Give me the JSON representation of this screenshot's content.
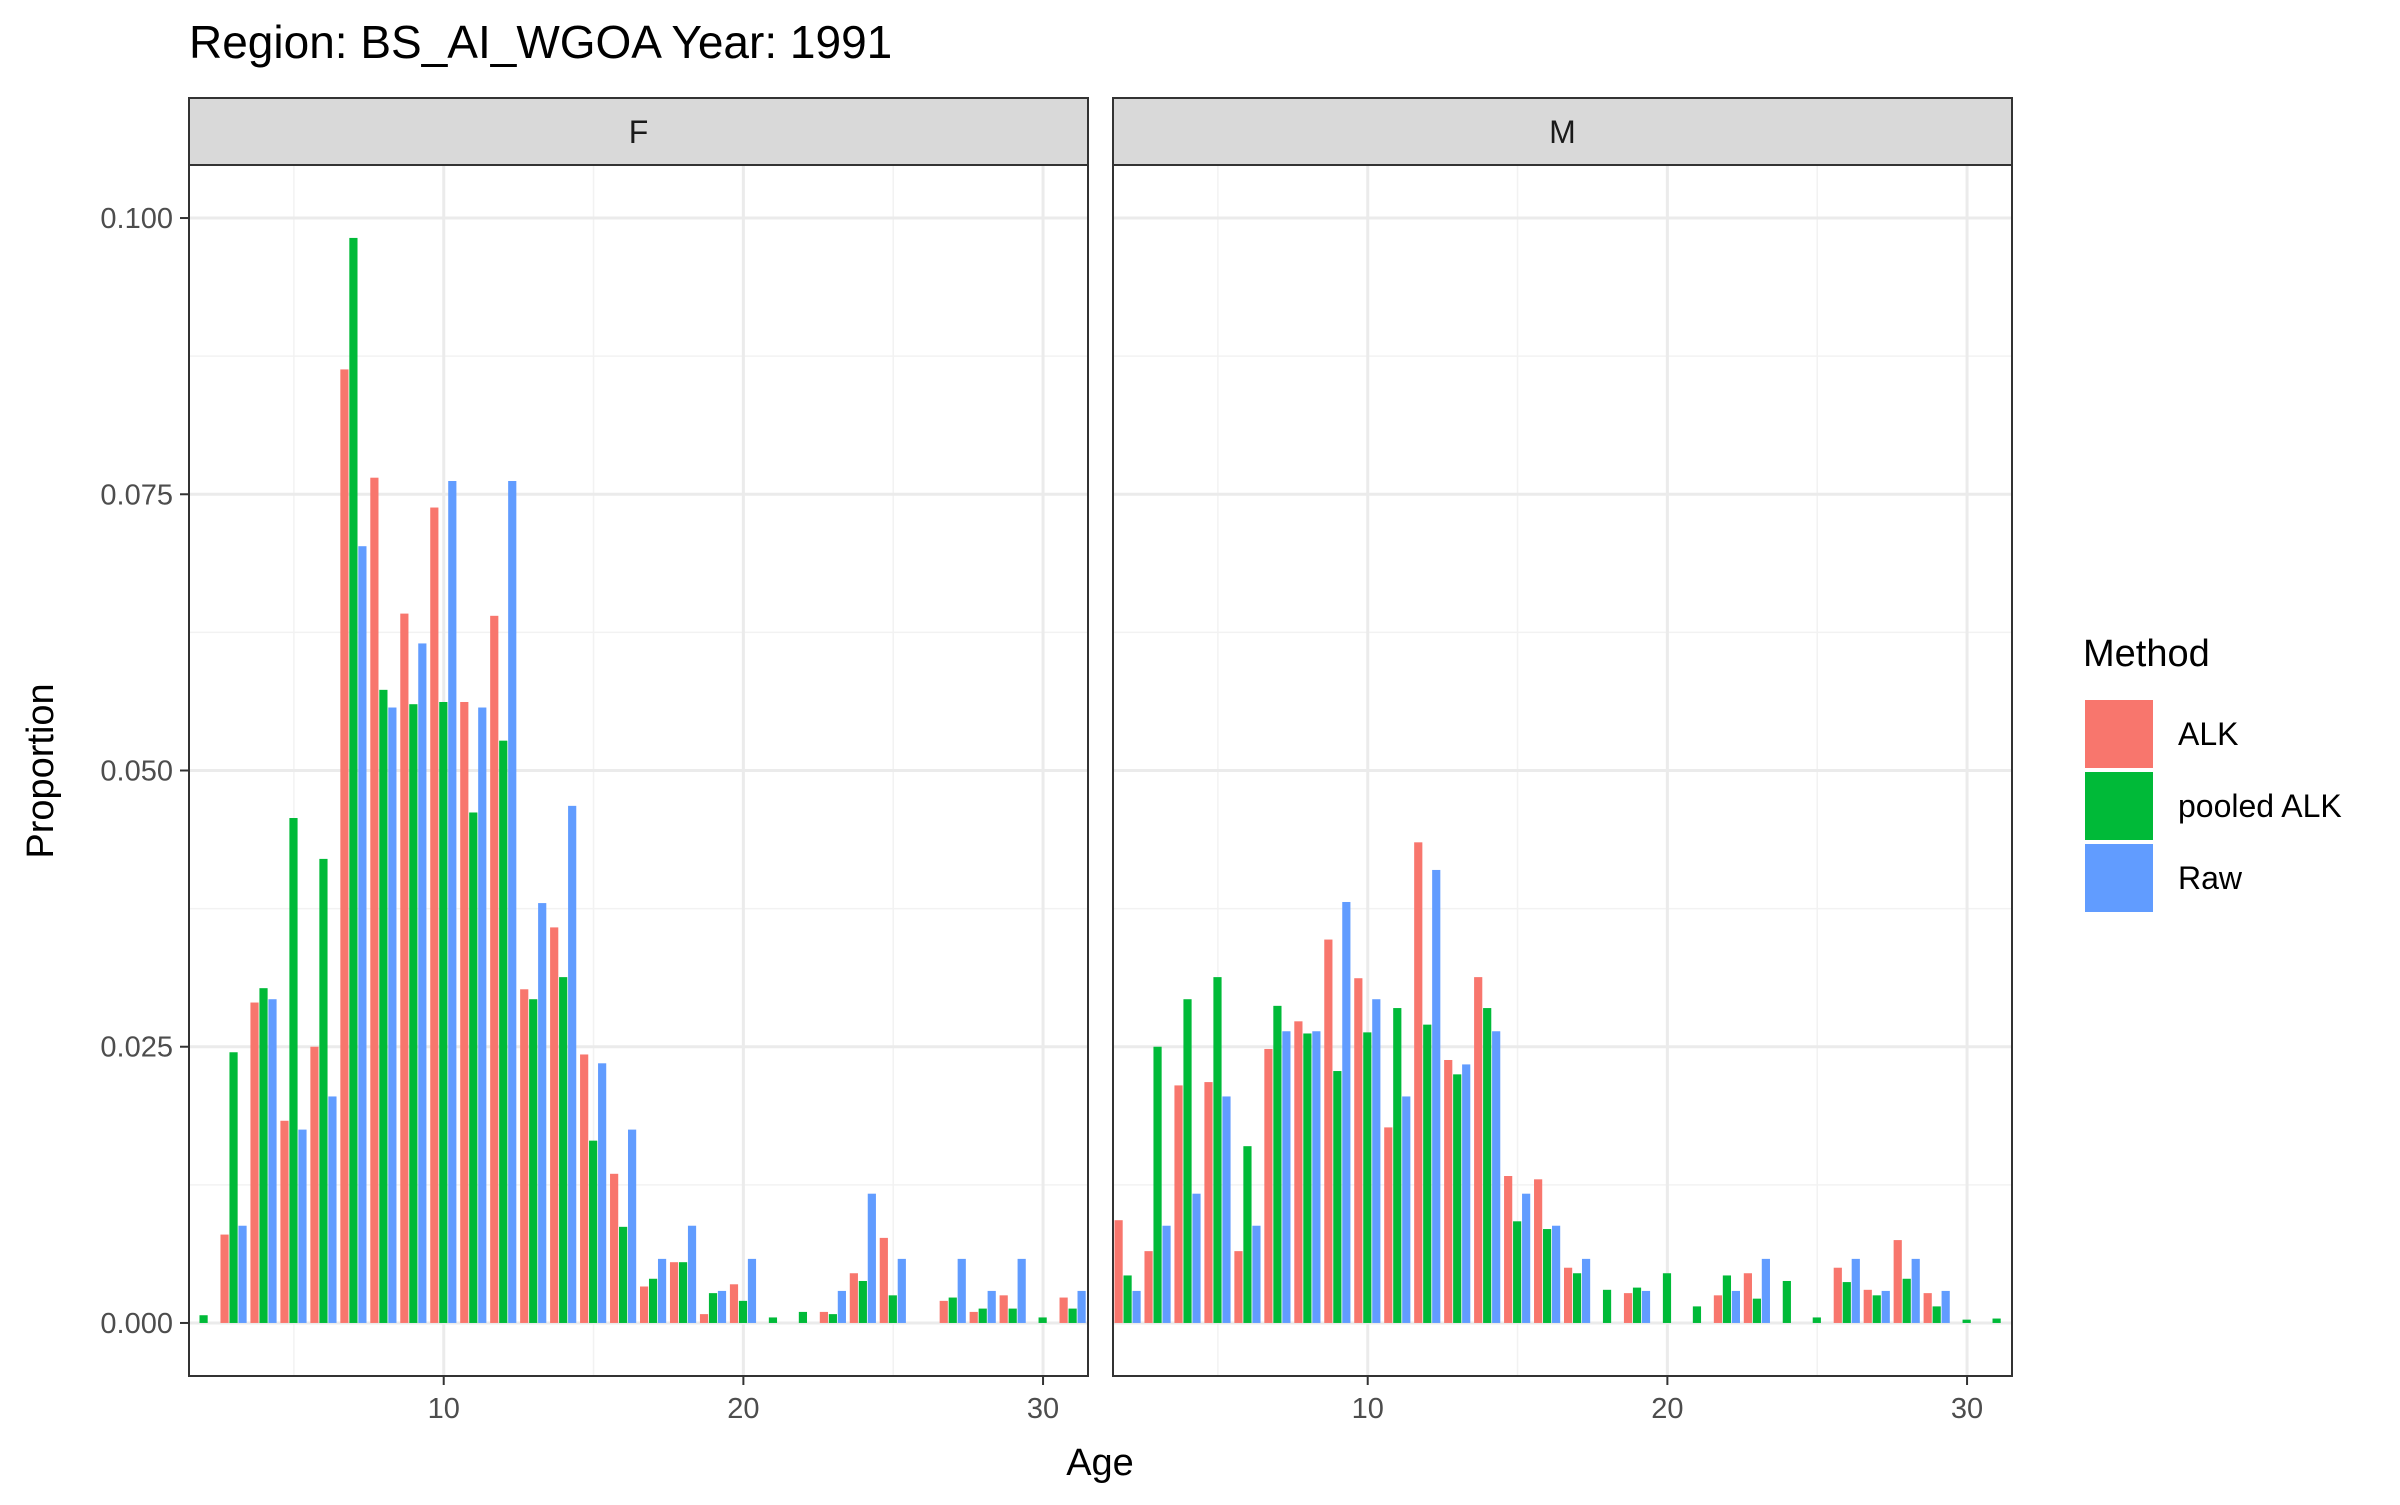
{
  "chart_data": {
    "type": "bar",
    "title": "Region: BS_AI_WGOA Year: 1991",
    "xlabel": "Age",
    "ylabel": "Proportion",
    "xlim": [
      1.5,
      31.5
    ],
    "ylim": [
      -0.0048,
      0.1048
    ],
    "x_ticks": [
      10,
      20,
      30
    ],
    "y_ticks": [
      0,
      0.025,
      0.05,
      0.075,
      0.1
    ],
    "y_tick_labels": [
      "0.000",
      "0.025",
      "0.050",
      "0.075",
      "0.100"
    ],
    "grid": true,
    "legend": {
      "title": "Method",
      "position": "right",
      "entries": [
        "ALK",
        "pooled ALK",
        "Raw"
      ]
    },
    "colors": {
      "ALK": "#F8766D",
      "pooled ALK": "#00BA38",
      "Raw": "#619CFF"
    },
    "panels": [
      {
        "name": "F",
        "x": [
          2,
          3,
          4,
          5,
          6,
          7,
          8,
          9,
          10,
          11,
          12,
          13,
          14,
          15,
          16,
          17,
          18,
          19,
          20,
          21,
          22,
          23,
          24,
          25,
          26,
          27,
          28,
          29,
          30,
          31
        ],
        "series": [
          {
            "name": "ALK",
            "values": [
              0,
              0.008,
              0.029,
              0.0183,
              0.025,
              0.0863,
              0.0765,
              0.0642,
              0.0738,
              0.0562,
              0.064,
              0.0302,
              0.0358,
              0.0243,
              0.0135,
              0.0033,
              0.0055,
              0.0008,
              0.0035,
              0,
              0,
              0.001,
              0.0045,
              0.0077,
              0,
              0.002,
              0.001,
              0.0025,
              0,
              0.0023
            ]
          },
          {
            "name": "pooled ALK",
            "values": [
              0.0007,
              0.0245,
              0.0303,
              0.0457,
              0.042,
              0.0982,
              0.0573,
              0.056,
              0.0562,
              0.0462,
              0.0527,
              0.0293,
              0.0313,
              0.0165,
              0.0087,
              0.004,
              0.0055,
              0.0027,
              0.002,
              0.0005,
              0.001,
              0.0008,
              0.0038,
              0.0025,
              0,
              0.0023,
              0.0013,
              0.0013,
              0.0005,
              0.0013
            ]
          },
          {
            "name": "Raw",
            "values": [
              0,
              0.0088,
              0.0293,
              0.0175,
              0.0205,
              0.0703,
              0.0557,
              0.0615,
              0.0762,
              0.0557,
              0.0762,
              0.038,
              0.0468,
              0.0235,
              0.0175,
              0.0058,
              0.0088,
              0.0029,
              0.0058,
              0,
              0,
              0.0029,
              0.0117,
              0.0058,
              0,
              0.0058,
              0.0029,
              0.0058,
              0,
              0.0029
            ]
          }
        ]
      },
      {
        "name": "M",
        "x": [
          2,
          3,
          4,
          5,
          6,
          7,
          8,
          9,
          10,
          11,
          12,
          13,
          14,
          15,
          16,
          17,
          18,
          19,
          20,
          21,
          22,
          23,
          24,
          25,
          26,
          27,
          28,
          29,
          30,
          31
        ],
        "series": [
          {
            "name": "ALK",
            "values": [
              0.0093,
              0.0065,
              0.0215,
              0.0218,
              0.0065,
              0.0248,
              0.0273,
              0.0347,
              0.0312,
              0.0177,
              0.0435,
              0.0238,
              0.0313,
              0.0133,
              0.013,
              0.005,
              0,
              0.0027,
              0,
              0,
              0.0025,
              0.0045,
              0,
              0,
              0.005,
              0.003,
              0.0075,
              0.0027,
              0,
              0
            ]
          },
          {
            "name": "pooled ALK",
            "values": [
              0.0043,
              0.025,
              0.0293,
              0.0313,
              0.016,
              0.0287,
              0.0262,
              0.0228,
              0.0263,
              0.0285,
              0.027,
              0.0225,
              0.0285,
              0.0092,
              0.0085,
              0.0045,
              0.003,
              0.0032,
              0.0045,
              0.0015,
              0.0043,
              0.0022,
              0.0038,
              0.0005,
              0.0037,
              0.0025,
              0.004,
              0.0015,
              0.0003,
              0.0004
            ]
          },
          {
            "name": "Raw",
            "values": [
              0.0029,
              0.0088,
              0.0117,
              0.0205,
              0.0088,
              0.0264,
              0.0264,
              0.0381,
              0.0293,
              0.0205,
              0.041,
              0.0234,
              0.0264,
              0.0117,
              0.0088,
              0.0058,
              0,
              0.0029,
              0,
              0,
              0.0029,
              0.0058,
              0,
              0,
              0.0058,
              0.0029,
              0.0058,
              0.0029,
              0,
              0
            ]
          }
        ]
      }
    ]
  }
}
